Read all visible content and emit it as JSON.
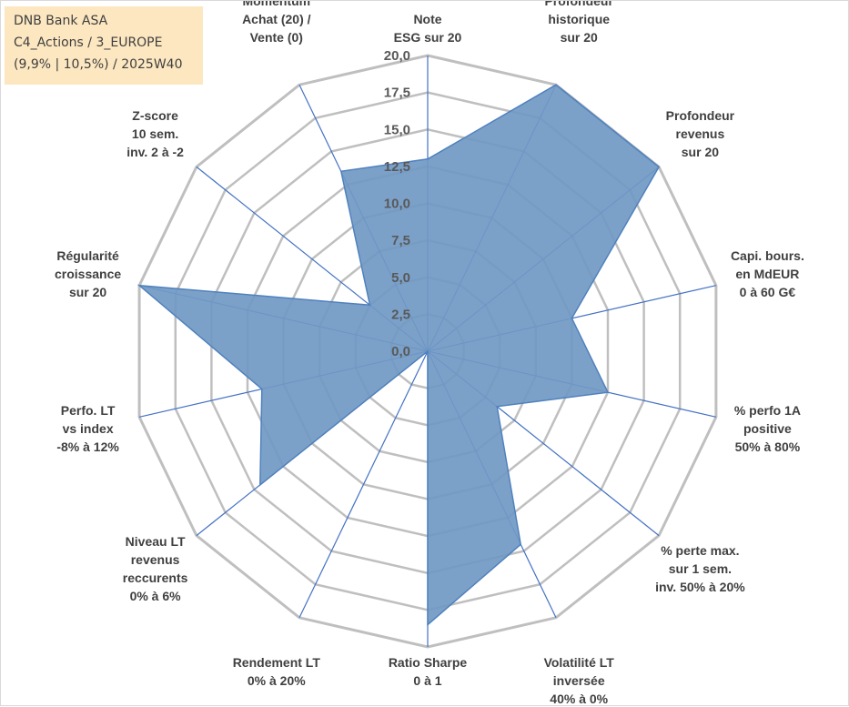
{
  "info_box": {
    "line1": "DNB Bank ASA",
    "line2": "C4_Actions / 3_EUROPE",
    "line3": "(9,9% | 10,5%) / 2025W40"
  },
  "chart_data": {
    "type": "radar",
    "title": "",
    "range": [
      0,
      20
    ],
    "ticks": [
      "0,0",
      "2,5",
      "5,0",
      "7,5",
      "10,0",
      "12,5",
      "15,0",
      "17,5",
      "20,0"
    ],
    "grid": true,
    "colors": {
      "fill": "#7199c4",
      "stroke": "#4f81bd",
      "spokes": "#4472c4",
      "grid": "#bfbfbf"
    },
    "axes": [
      [
        "Note",
        "ESG sur 20"
      ],
      [
        "Profondeur",
        "historique",
        "sur 20"
      ],
      [
        "Profondeur",
        "revenus",
        "sur 20"
      ],
      [
        "Capi. bours.",
        "en MdEUR",
        "0 à 60 G€"
      ],
      [
        "% perfo 1A",
        "positive",
        "50% à 80%"
      ],
      [
        "% perte max.",
        "sur 1 sem.",
        "inv. 50% à 20%"
      ],
      [
        "Volatilité LT",
        "inversée",
        "40% à 0%"
      ],
      [
        "Ratio Sharpe",
        "0 à 1"
      ],
      [
        "Rendement LT",
        "0% à 20%"
      ],
      [
        "Niveau LT",
        "revenus",
        "reccurents",
        "0% à 6%"
      ],
      [
        "Perfo. LT",
        "vs index",
        "-8% à 12%"
      ],
      [
        "Régularité",
        "croissance",
        "sur 20"
      ],
      [
        "Z-score",
        "10 sem.",
        "inv. 2 à -2"
      ],
      [
        "Momentum",
        "Achat (20) /",
        "Vente (0)"
      ]
    ],
    "values": [
      13.0,
      20.0,
      20.0,
      10.0,
      12.5,
      6.0,
      14.5,
      18.5,
      0.0,
      14.5,
      11.5,
      20.0,
      5.0,
      13.5
    ]
  }
}
